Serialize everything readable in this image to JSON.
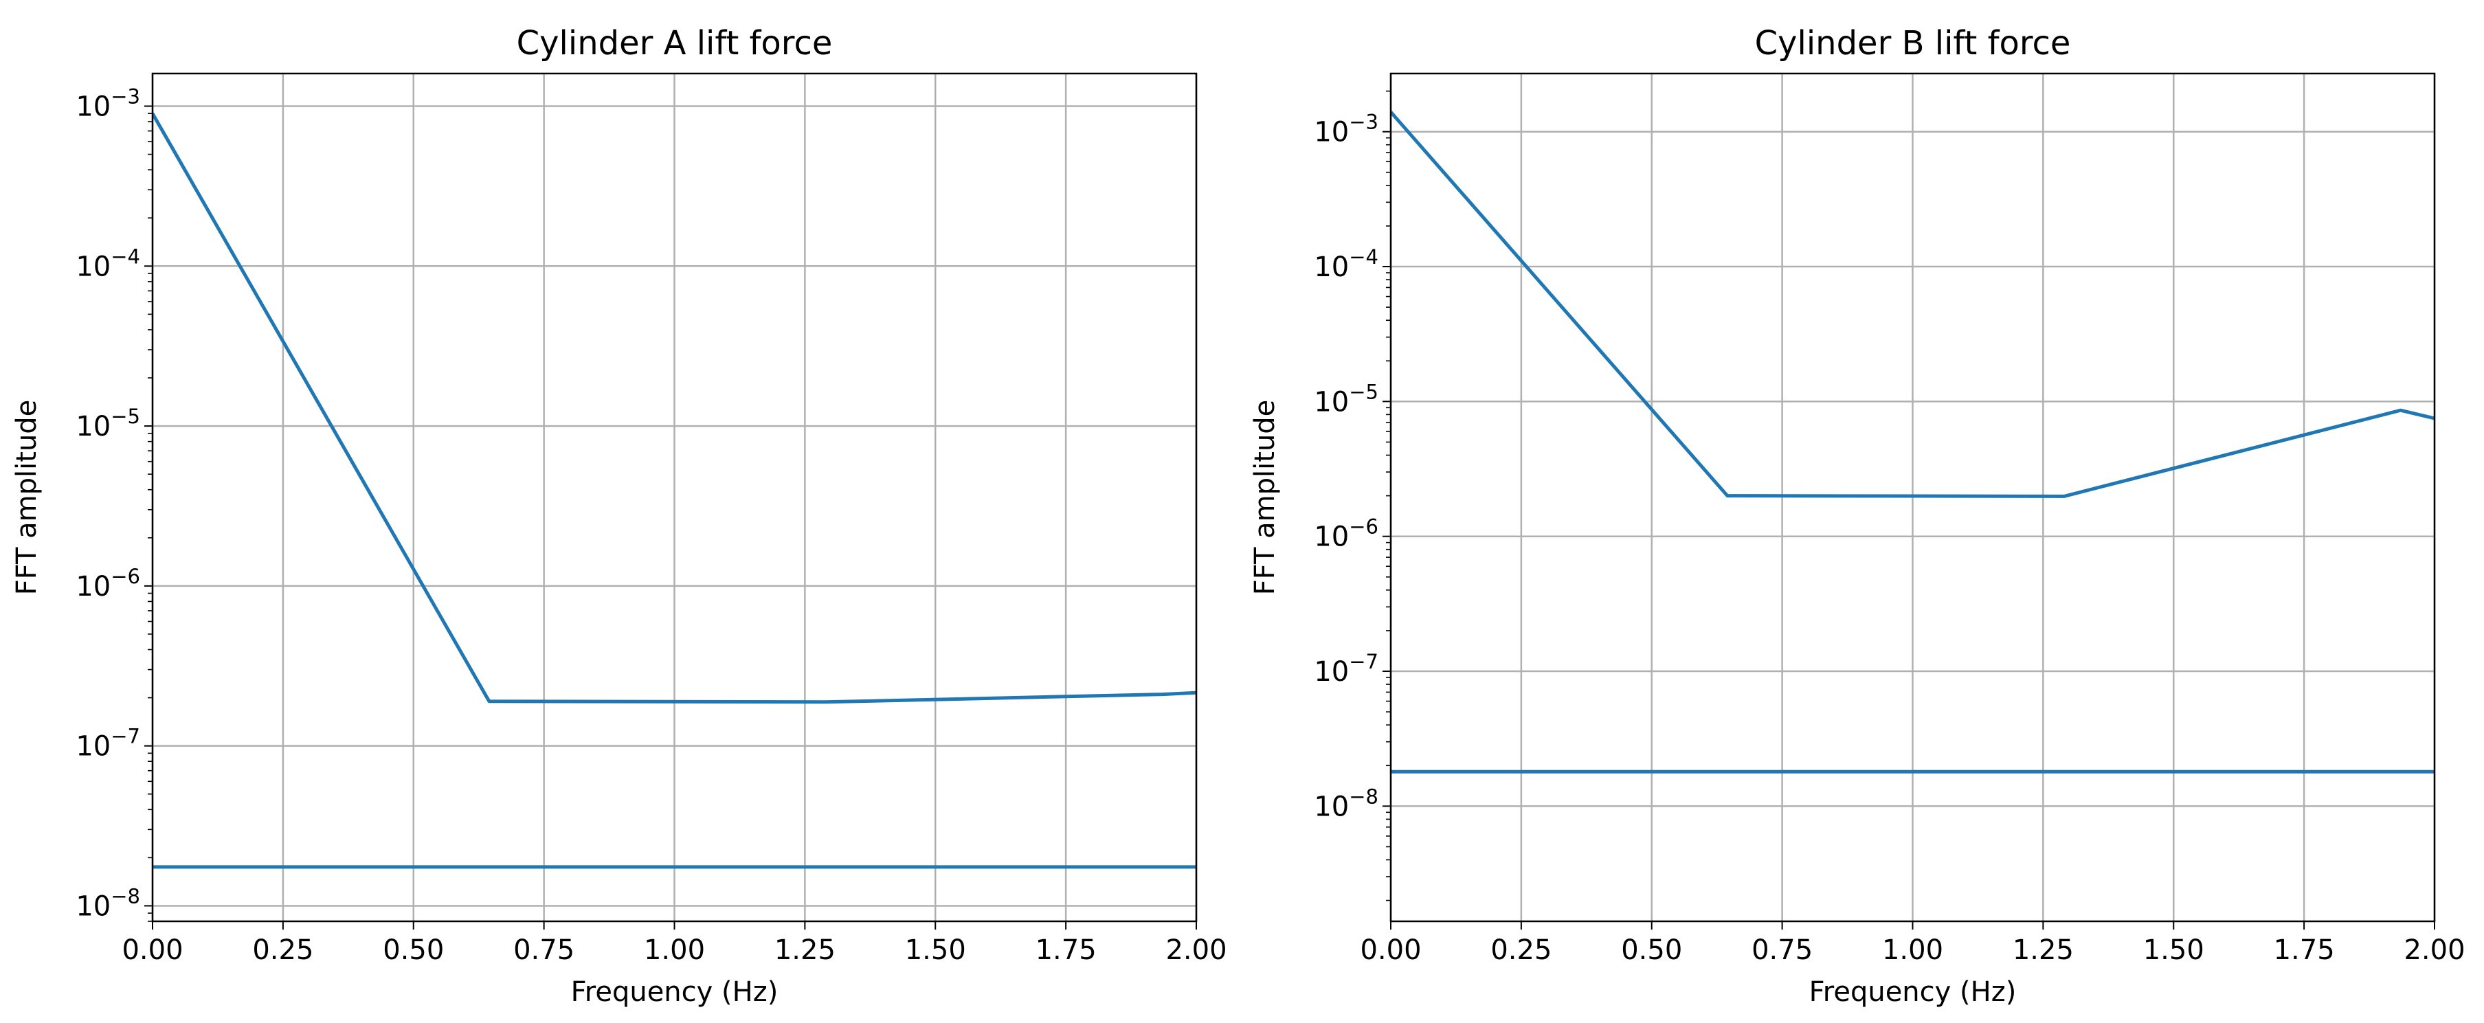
{
  "chart_data": [
    {
      "type": "line",
      "title": "Cylinder A lift force",
      "xlabel": "Frequency (Hz)",
      "ylabel": "FFT amplitude",
      "xlim": [
        0,
        2
      ],
      "ylim": [
        8e-09,
        0.0016
      ],
      "yscale": "log",
      "grid": true,
      "x_ticks": [
        "0.00",
        "0.25",
        "0.50",
        "0.75",
        "1.00",
        "1.25",
        "1.50",
        "1.75",
        "2.00"
      ],
      "y_ticks": [
        {
          "value": 1e-08,
          "base": "10",
          "exponent": "−8"
        },
        {
          "value": 1e-07,
          "base": "10",
          "exponent": "−7"
        },
        {
          "value": 1e-06,
          "base": "10",
          "exponent": "−6"
        },
        {
          "value": 1e-05,
          "base": "10",
          "exponent": "−5"
        },
        {
          "value": 0.0001,
          "base": "10",
          "exponent": "−4"
        },
        {
          "value": 0.001,
          "base": "10",
          "exponent": "−3"
        }
      ],
      "series": [
        {
          "color": "#1f77b4",
          "x": [
            0.0,
            0.645,
            1.29,
            1.935,
            2.0
          ],
          "y": [
            0.0009,
            1.9e-07,
            1.88e-07,
            2.1e-07,
            2.15e-07
          ]
        },
        {
          "color": "#1f77b4",
          "x": [
            0.0,
            2.0
          ],
          "y": [
            1.75e-08,
            1.75e-08
          ]
        }
      ]
    },
    {
      "type": "line",
      "title": "Cylinder B lift force",
      "xlabel": "Frequency (Hz)",
      "ylabel": "FFT amplitude",
      "xlim": [
        0,
        2
      ],
      "ylim": [
        1.4e-09,
        0.0027
      ],
      "yscale": "log",
      "grid": true,
      "x_ticks": [
        "0.00",
        "0.25",
        "0.50",
        "0.75",
        "1.00",
        "1.25",
        "1.50",
        "1.75",
        "2.00"
      ],
      "y_ticks": [
        {
          "value": 1e-08,
          "base": "10",
          "exponent": "−8"
        },
        {
          "value": 1e-07,
          "base": "10",
          "exponent": "−7"
        },
        {
          "value": 1e-06,
          "base": "10",
          "exponent": "−6"
        },
        {
          "value": 1e-05,
          "base": "10",
          "exponent": "−5"
        },
        {
          "value": 0.0001,
          "base": "10",
          "exponent": "−4"
        },
        {
          "value": 0.001,
          "base": "10",
          "exponent": "−3"
        }
      ],
      "series": [
        {
          "color": "#1f77b4",
          "x": [
            0.0,
            0.645,
            1.29,
            1.935,
            2.0
          ],
          "y": [
            0.0014,
            2e-06,
            1.98e-06,
            8.6e-06,
            7.5e-06
          ]
        },
        {
          "color": "#1f77b4",
          "x": [
            0.0,
            2.0
          ],
          "y": [
            1.8e-08,
            1.8e-08
          ]
        }
      ]
    }
  ]
}
